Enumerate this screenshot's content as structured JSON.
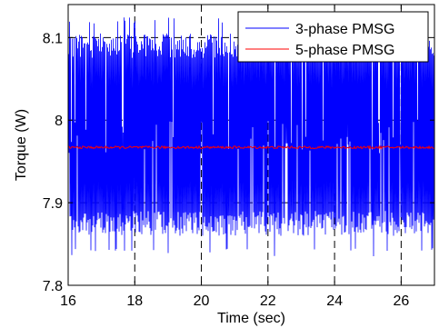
{
  "chart_data": {
    "type": "line",
    "xlabel": "Time (sec)",
    "ylabel": "Torque (W)",
    "xlim": [
      16,
      27
    ],
    "ylim": [
      7.8,
      8.14
    ],
    "xticks": [
      16,
      18,
      20,
      22,
      24,
      26
    ],
    "yticks": [
      7.8,
      7.9,
      8,
      8.1
    ],
    "ytick_labels": [
      "7.8",
      "7.9",
      "8",
      "8.1"
    ],
    "grid": "dashed",
    "legend_position": "top-right",
    "series": [
      {
        "name": "3-phase PMSG",
        "color": "#0000ff",
        "mean": 7.98,
        "typical_min": 7.86,
        "typical_max": 8.105,
        "peak_min": 7.835,
        "peak_max": 8.125
      },
      {
        "name": "5-phase PMSG",
        "color": "#ff0000",
        "mean": 7.967,
        "ripple": 0.0015
      }
    ]
  }
}
